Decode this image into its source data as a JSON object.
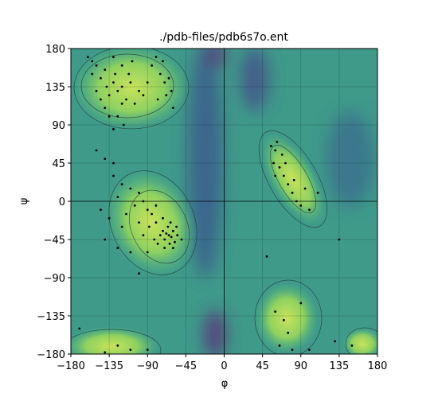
{
  "chart_data": {
    "type": "scatter",
    "title": "./pdb-files/pdb6s7o.ent",
    "x_label": "φ",
    "y_label": "ψ",
    "xlim": [
      -180,
      180
    ],
    "ylim": [
      -180,
      180
    ],
    "xticks": [
      {
        "value": -180,
        "label": "−180"
      },
      {
        "value": -135,
        "label": "−135"
      },
      {
        "value": -90,
        "label": "−90"
      },
      {
        "value": -45,
        "label": "−45"
      },
      0,
      45,
      90,
      135,
      180
    ],
    "yticks": [
      {
        "value": -180,
        "label": "−180"
      },
      {
        "value": -135,
        "label": "−135"
      },
      {
        "value": -90,
        "label": "−90"
      },
      {
        "value": -45,
        "label": "−45"
      },
      0,
      45,
      90,
      135,
      180
    ],
    "grid": true,
    "color": "#000000",
    "series": [
      {
        "x": [
          -150,
          -140,
          -130,
          -125,
          -120,
          -135,
          -115,
          -110,
          -100,
          -145,
          -155,
          -160,
          -130,
          -120,
          -105,
          -95,
          -75,
          -70,
          -65,
          -72,
          -80,
          -68,
          -62,
          -85,
          -140,
          -125,
          -118,
          -130,
          -150,
          -138,
          -128,
          -112,
          -108,
          -90,
          -78,
          -60,
          -155,
          -145,
          -135,
          -120,
          -65,
          -62,
          -68,
          -70,
          -60,
          -58,
          -66,
          -72,
          -75,
          -64,
          -55,
          -80,
          -85,
          -90,
          -95,
          -100,
          -110,
          -120,
          -130,
          -125,
          -105,
          -88,
          -78,
          -70,
          -60,
          -50,
          -56,
          -82,
          -95,
          -100,
          -115,
          -120,
          -135,
          -140,
          -125,
          -110,
          -90,
          -80,
          -72,
          -63,
          -140,
          -130,
          -145,
          -150,
          55,
          60,
          58,
          65,
          70,
          75,
          80,
          85,
          90,
          60,
          68,
          72,
          82,
          95,
          100,
          62,
          110,
          60,
          70,
          75,
          80,
          65,
          100,
          130,
          -125,
          -110,
          -140,
          -90,
          -170,
          -100,
          50,
          135,
          150,
          90
        ],
        "values": [
          160,
          155,
          140,
          130,
          135,
          125,
          120,
          140,
          130,
          145,
          165,
          170,
          170,
          160,
          115,
          125,
          150,
          140,
          145,
          165,
          170,
          125,
          130,
          160,
          110,
          100,
          90,
          85,
          130,
          135,
          150,
          150,
          165,
          140,
          120,
          110,
          150,
          120,
          100,
          115,
          -40,
          -42,
          -38,
          -45,
          -35,
          -48,
          -30,
          -35,
          -40,
          -50,
          -40,
          -25,
          -15,
          -10,
          0,
          10,
          15,
          20,
          30,
          5,
          -5,
          -30,
          -50,
          -55,
          -55,
          -45,
          -30,
          -45,
          -40,
          -25,
          -15,
          -30,
          -20,
          -45,
          -55,
          -60,
          -60,
          -5,
          -20,
          -25,
          50,
          45,
          -10,
          60,
          65,
          60,
          45,
          40,
          30,
          20,
          10,
          0,
          -5,
          30,
          55,
          45,
          25,
          15,
          -10,
          70,
          10,
          -130,
          -140,
          -155,
          -175,
          -170,
          -175,
          -165,
          -170,
          -175,
          -178,
          -175,
          -150,
          -85,
          -65,
          -45,
          -170,
          -120
        ]
      }
    ]
  }
}
